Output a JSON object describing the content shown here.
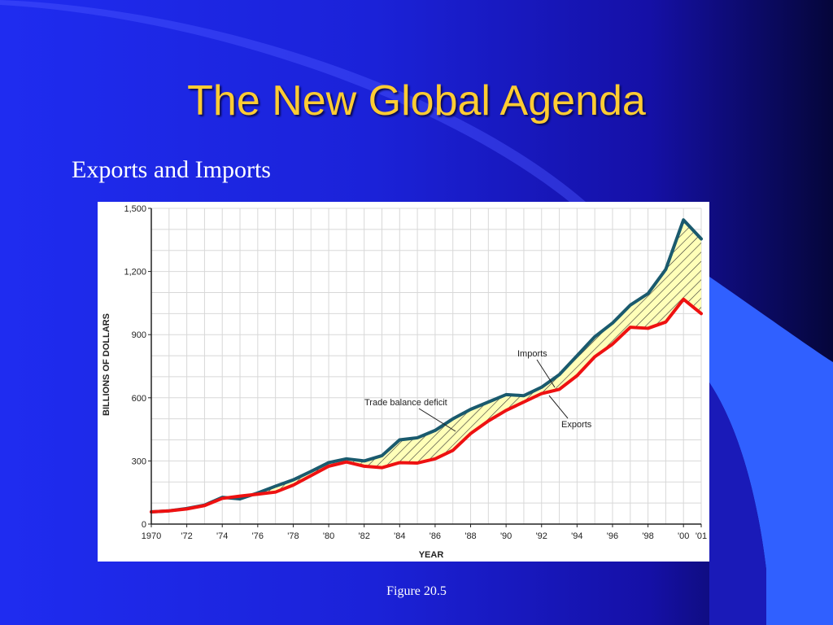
{
  "slide": {
    "title": "The New Global Agenda",
    "subtitle": "Exports and Imports",
    "caption": "Figure 20.5"
  },
  "colors": {
    "background": "#1b22d8",
    "title": "#ffcc33",
    "imports_line": "#1a5a6e",
    "exports_line": "#ee1111",
    "deficit_fill": "#ffffb8",
    "hatch": "#333333"
  },
  "chart_data": {
    "type": "line",
    "xlabel": "YEAR",
    "ylabel": "BILLIONS OF DOLLARS",
    "ylim": [
      0,
      1500
    ],
    "xlim": [
      1970,
      2001
    ],
    "grid": true,
    "y_ticks": [
      0,
      300,
      600,
      900,
      1200,
      1500
    ],
    "y_tick_labels": [
      "0",
      "300",
      "600",
      "900",
      "1,200",
      "1,500"
    ],
    "x_ticks": [
      1970,
      1972,
      1974,
      1976,
      1978,
      1980,
      1982,
      1984,
      1986,
      1988,
      1990,
      1992,
      1994,
      1996,
      1998,
      2000,
      2001
    ],
    "x_tick_labels": [
      "1970",
      "'72",
      "'74",
      "'76",
      "'78",
      "'80",
      "'82",
      "'84",
      "'86",
      "'88",
      "'90",
      "'92",
      "'94",
      "'96",
      "'98",
      "'00",
      "'01"
    ],
    "x": [
      1970,
      1971,
      1972,
      1973,
      1974,
      1975,
      1976,
      1977,
      1978,
      1979,
      1980,
      1981,
      1982,
      1983,
      1984,
      1985,
      1986,
      1987,
      1988,
      1989,
      1990,
      1991,
      1992,
      1993,
      1994,
      1995,
      1996,
      1997,
      1998,
      1999,
      2000,
      2001
    ],
    "series": [
      {
        "name": "Imports",
        "values": [
          58,
          63,
          74,
          90,
          127,
          120,
          148,
          180,
          210,
          250,
          292,
          310,
          300,
          325,
          400,
          410,
          445,
          500,
          545,
          580,
          615,
          610,
          650,
          710,
          800,
          890,
          955,
          1040,
          1095,
          1210,
          1445,
          1355
        ]
      },
      {
        "name": "Exports",
        "values": [
          58,
          63,
          72,
          88,
          122,
          133,
          142,
          152,
          185,
          230,
          275,
          295,
          275,
          268,
          292,
          290,
          310,
          350,
          430,
          490,
          540,
          580,
          620,
          640,
          705,
          795,
          855,
          935,
          930,
          960,
          1068,
          1000
        ]
      }
    ],
    "annotations": [
      "Imports",
      "Trade balance deficit",
      "Exports"
    ]
  }
}
